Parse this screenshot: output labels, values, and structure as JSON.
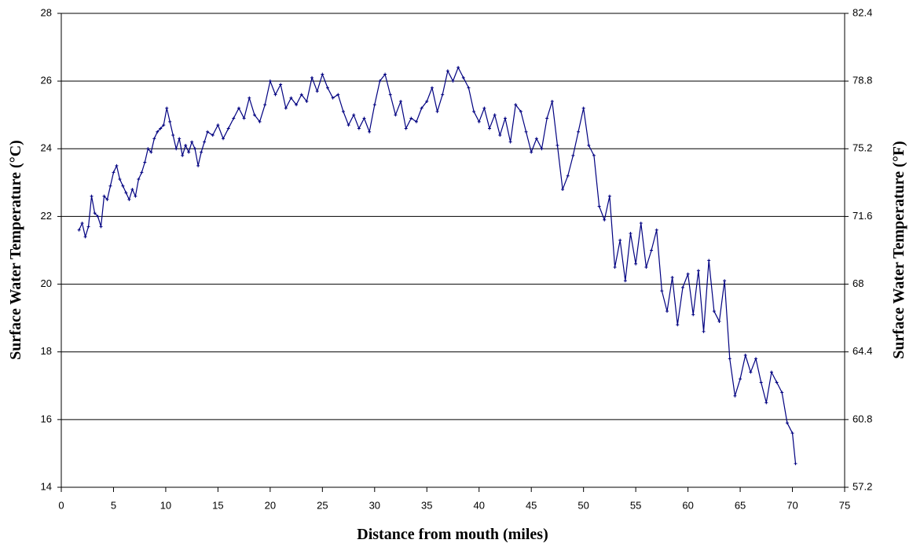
{
  "chart_data": {
    "type": "line",
    "xlabel": "Distance from mouth (miles)",
    "ylabel": "Surface Water Temperature (°C)",
    "y2label": "Surface Water Temperature (°F)",
    "xlim": [
      0,
      75
    ],
    "xticks": [
      0,
      5,
      10,
      15,
      20,
      25,
      30,
      35,
      40,
      45,
      50,
      55,
      60,
      65,
      70,
      75
    ],
    "ylim": [
      14,
      28
    ],
    "yticks": [
      14,
      16,
      18,
      20,
      22,
      24,
      26,
      28
    ],
    "y2lim": [
      57.2,
      82.4
    ],
    "y2ticks": [
      57.2,
      60.8,
      64.4,
      68,
      71.6,
      75.2,
      78.8,
      82.4
    ],
    "grid": true,
    "color": "#000080",
    "x": [
      1.7,
      2.0,
      2.3,
      2.6,
      2.9,
      3.2,
      3.5,
      3.8,
      4.1,
      4.4,
      4.7,
      5.0,
      5.3,
      5.6,
      5.9,
      6.2,
      6.5,
      6.8,
      7.1,
      7.4,
      7.7,
      8.0,
      8.3,
      8.6,
      8.9,
      9.2,
      9.5,
      9.8,
      10.1,
      10.4,
      10.7,
      11.0,
      11.3,
      11.6,
      11.9,
      12.2,
      12.5,
      12.8,
      13.1,
      13.4,
      13.7,
      14.0,
      14.5,
      15.0,
      15.5,
      16.0,
      16.5,
      17.0,
      17.5,
      18.0,
      18.5,
      19.0,
      19.5,
      20.0,
      20.5,
      21.0,
      21.5,
      22.0,
      22.5,
      23.0,
      23.5,
      24.0,
      24.5,
      25.0,
      25.5,
      26.0,
      26.5,
      27.0,
      27.5,
      28.0,
      28.5,
      29.0,
      29.5,
      30.0,
      30.5,
      31.0,
      31.5,
      32.0,
      32.5,
      33.0,
      33.5,
      34.0,
      34.5,
      35.0,
      35.5,
      36.0,
      36.5,
      37.0,
      37.5,
      38.0,
      38.5,
      39.0,
      39.5,
      40.0,
      40.5,
      41.0,
      41.5,
      42.0,
      42.5,
      43.0,
      43.5,
      44.0,
      44.5,
      45.0,
      45.5,
      46.0,
      46.5,
      47.0,
      47.5,
      48.0,
      48.5,
      49.0,
      49.5,
      50.0,
      50.5,
      51.0,
      51.5,
      52.0,
      52.5,
      53.0,
      53.5,
      54.0,
      54.5,
      55.0,
      55.5,
      56.0,
      56.5,
      57.0,
      57.5,
      58.0,
      58.5,
      59.0,
      59.5,
      60.0,
      60.5,
      61.0,
      61.5,
      62.0,
      62.5,
      63.0,
      63.5,
      64.0,
      64.5,
      65.0,
      65.5,
      66.0,
      66.5,
      67.0,
      67.5,
      68.0,
      68.5,
      69.0,
      69.5,
      70.0,
      70.3
    ],
    "values": [
      21.6,
      21.8,
      21.4,
      21.7,
      22.6,
      22.1,
      22.0,
      21.7,
      22.6,
      22.5,
      22.9,
      23.3,
      23.5,
      23.1,
      22.9,
      22.7,
      22.5,
      22.8,
      22.6,
      23.1,
      23.3,
      23.6,
      24.0,
      23.9,
      24.3,
      24.5,
      24.6,
      24.7,
      25.2,
      24.8,
      24.4,
      24.0,
      24.3,
      23.8,
      24.1,
      23.9,
      24.2,
      24.0,
      23.5,
      23.9,
      24.2,
      24.5,
      24.4,
      24.7,
      24.3,
      24.6,
      24.9,
      25.2,
      24.9,
      25.5,
      25.0,
      24.8,
      25.3,
      26.0,
      25.6,
      25.9,
      25.2,
      25.5,
      25.3,
      25.6,
      25.4,
      26.1,
      25.7,
      26.2,
      25.8,
      25.5,
      25.6,
      25.1,
      24.7,
      25.0,
      24.6,
      24.9,
      24.5,
      25.3,
      26.0,
      26.2,
      25.6,
      25.0,
      25.4,
      24.6,
      24.9,
      24.8,
      25.2,
      25.4,
      25.8,
      25.1,
      25.6,
      26.3,
      26.0,
      26.4,
      26.1,
      25.8,
      25.1,
      24.8,
      25.2,
      24.6,
      25.0,
      24.4,
      24.9,
      24.2,
      25.3,
      25.1,
      24.5,
      23.9,
      24.3,
      24.0,
      24.9,
      25.4,
      24.1,
      22.8,
      23.2,
      23.8,
      24.5,
      25.2,
      24.1,
      23.8,
      22.3,
      21.9,
      22.6,
      20.5,
      21.3,
      20.1,
      21.5,
      20.6,
      21.8,
      20.5,
      21.0,
      21.6,
      19.8,
      19.2,
      20.2,
      18.8,
      19.9,
      20.3,
      19.1,
      20.4,
      18.6,
      20.7,
      19.2,
      18.9,
      20.1,
      17.8,
      16.7,
      17.2,
      17.9,
      17.4,
      17.8,
      17.1,
      16.5,
      17.4,
      17.1,
      16.8,
      15.9,
      15.6,
      14.7
    ]
  }
}
